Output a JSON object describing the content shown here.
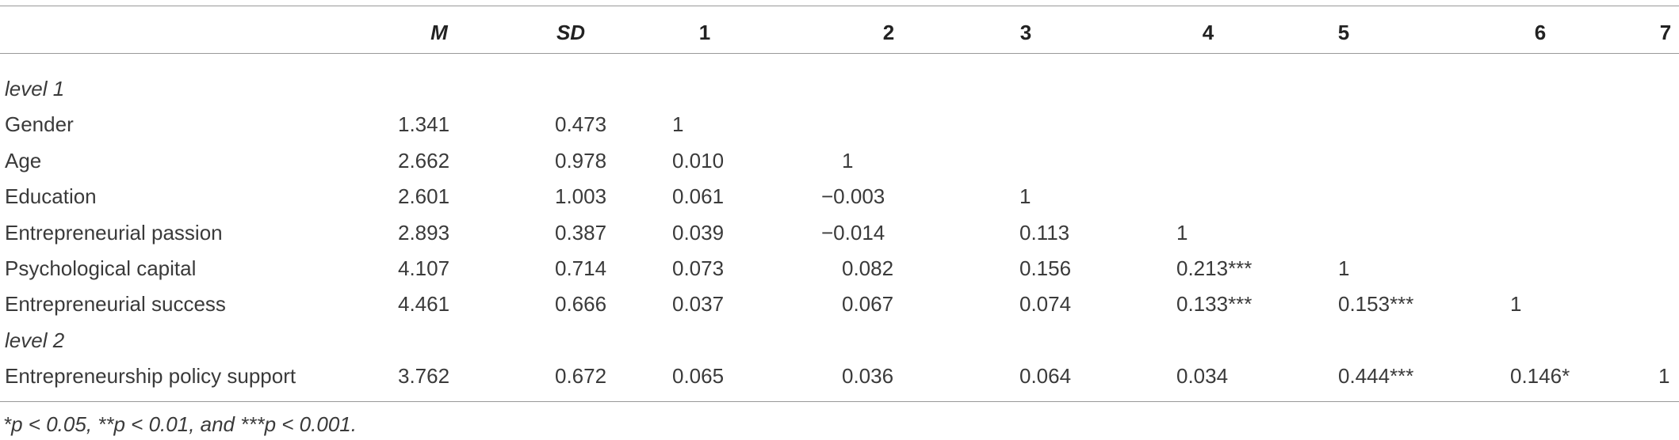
{
  "table": {
    "header": [
      "M",
      "SD",
      "1",
      "2",
      "3",
      "4",
      "5",
      "6",
      "7"
    ],
    "rows": [
      [
        "level 1"
      ],
      [
        "Gender",
        "1.341",
        "0.473",
        "1"
      ],
      [
        "Age",
        "2.662",
        "0.978",
        "0.010",
        "1"
      ],
      [
        "Education",
        "2.601",
        "1.003",
        "0.061",
        "−0.003",
        "1"
      ],
      [
        "Entrepreneurial passion",
        "2.893",
        "0.387",
        "0.039",
        "−0.014",
        "0.113",
        "1"
      ],
      [
        "Psychological capital",
        "4.107",
        "0.714",
        "0.073",
        "0.082",
        "0.156",
        "0.213***",
        "1"
      ],
      [
        "Entrepreneurial success",
        "4.461",
        "0.666",
        "0.037",
        "0.067",
        "0.074",
        "0.133***",
        "0.153***",
        "1"
      ],
      [
        "level 2"
      ],
      [
        "Entrepreneurship policy support",
        "3.762",
        "0.672",
        "0.065",
        "0.036",
        "0.064",
        "0.034",
        "0.444***",
        "0.146*",
        "1"
      ]
    ],
    "footnote": "*p < 0.05, **p < 0.01, and ***p < 0.001."
  }
}
